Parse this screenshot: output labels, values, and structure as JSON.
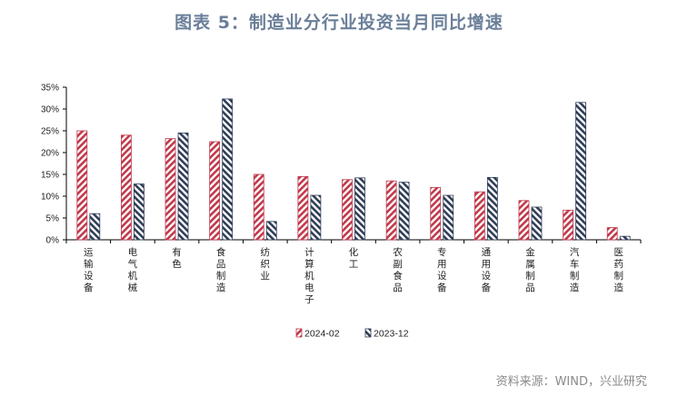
{
  "title": "图表 5：制造业分行业投资当月同比增速",
  "source": "资料来源：WIND，兴业研究",
  "colors": {
    "series1": "#c0394b",
    "series2": "#2f3d57"
  },
  "chart_data": {
    "type": "bar",
    "title": "图表 5：制造业分行业投资当月同比增速",
    "categories": [
      "运输设备",
      "电气机械",
      "有色",
      "食品制造",
      "纺织业",
      "计算机电子",
      "化工",
      "农副食品",
      "专用设备",
      "通用设备",
      "金属制品",
      "汽车制造",
      "医药制造"
    ],
    "series": [
      {
        "name": "2024-02",
        "values": [
          25.0,
          24.0,
          23.2,
          22.5,
          15.0,
          14.5,
          13.8,
          13.5,
          12.0,
          11.0,
          9.0,
          6.8,
          2.8
        ],
        "pattern": "red-white diagonal hatch"
      },
      {
        "name": "2023-12",
        "values": [
          6.0,
          12.8,
          24.5,
          32.3,
          4.2,
          10.2,
          14.2,
          13.2,
          10.2,
          14.3,
          7.5,
          31.5,
          0.8
        ],
        "pattern": "navy-white diagonal hatch"
      }
    ],
    "ylim": [
      0,
      35
    ],
    "yticks": [
      "0%",
      "5%",
      "10%",
      "15%",
      "20%",
      "25%",
      "30%",
      "35%"
    ],
    "grid": false,
    "legend": "bottom"
  }
}
